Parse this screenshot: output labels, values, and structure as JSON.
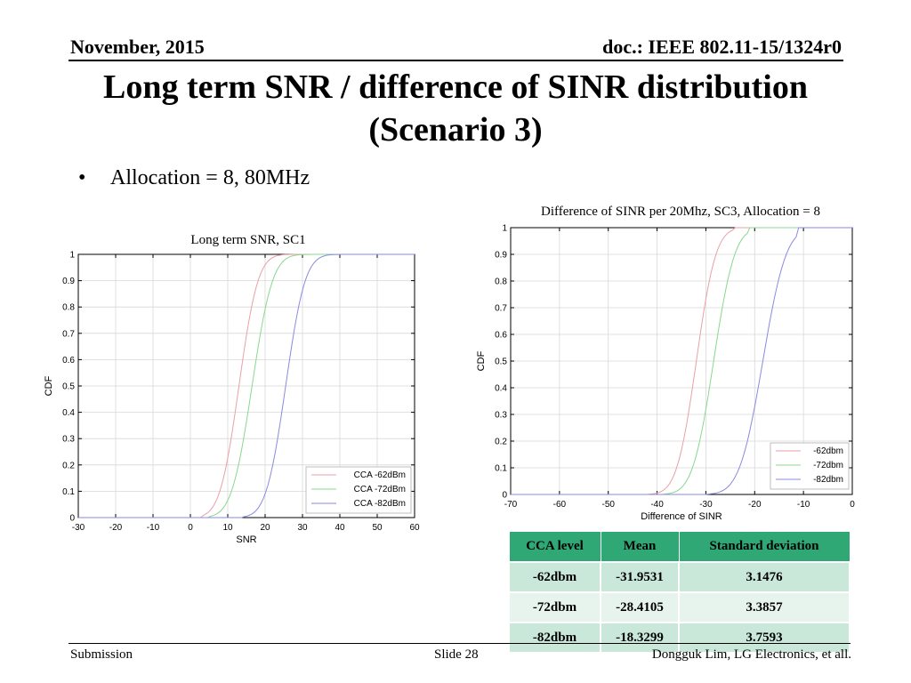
{
  "header": {
    "date": "November, 2015",
    "doc": "doc.: IEEE 802.11-15/1324r0"
  },
  "title_line1": "Long term SNR / difference of SINR distribution",
  "title_line2": "(Scenario 3)",
  "bullet": {
    "dot": "•",
    "text": "Allocation = 8, 80MHz"
  },
  "chart_data": [
    {
      "type": "line",
      "title": "Long term SNR, SC1",
      "xlabel": "SNR",
      "ylabel": "CDF",
      "xlim": [
        -30,
        60
      ],
      "ylim": [
        0,
        1
      ],
      "xticks": [
        -30,
        -20,
        -10,
        0,
        10,
        20,
        30,
        40,
        50,
        60
      ],
      "yticks": [
        0,
        0.1,
        0.2,
        0.3,
        0.4,
        0.5,
        0.6,
        0.7,
        0.8,
        0.9,
        1
      ],
      "grid": true,
      "legend_position": "bottom-right",
      "series": [
        {
          "name": "CCA -62dBm",
          "color": "#e8a0a8",
          "mean": 13,
          "std": 4,
          "x_range": [
            3,
            29
          ]
        },
        {
          "name": "CCA -72dBm",
          "color": "#88d88c",
          "mean": 16.5,
          "std": 4.3,
          "x_range": [
            5,
            33
          ]
        },
        {
          "name": "CCA -82dBm",
          "color": "#8a8ae0",
          "mean": 25.5,
          "std": 4.1,
          "x_range": [
            14,
            43
          ]
        }
      ]
    },
    {
      "type": "line",
      "title": "Difference of SINR per 20Mhz, SC3, Allocation = 8",
      "xlabel": "Difference of SINR",
      "ylabel": "CDF",
      "xlim": [
        -70,
        0
      ],
      "ylim": [
        0,
        1
      ],
      "xticks": [
        -70,
        -60,
        -50,
        -40,
        -30,
        -20,
        -10,
        0
      ],
      "yticks": [
        0,
        0.1,
        0.2,
        0.3,
        0.4,
        0.5,
        0.6,
        0.7,
        0.8,
        0.9,
        1
      ],
      "grid": true,
      "legend_position": "bottom-right",
      "series": [
        {
          "name": "-62dbm",
          "color": "#e8a0a8",
          "mean": -31.9531,
          "std": 3.1476,
          "x_range": [
            -42,
            -24
          ]
        },
        {
          "name": "-72dbm",
          "color": "#88d88c",
          "mean": -28.4105,
          "std": 3.3857,
          "x_range": [
            -39,
            -21
          ]
        },
        {
          "name": "-82dbm",
          "color": "#8a8ae0",
          "mean": -18.3299,
          "std": 3.7593,
          "x_range": [
            -30,
            -11
          ]
        }
      ]
    }
  ],
  "table": {
    "headers": [
      "CCA level",
      "Mean",
      "Standard deviation"
    ],
    "rows": [
      [
        "-62dbm",
        "-31.9531",
        "3.1476"
      ],
      [
        "-72dbm",
        "-28.4105",
        "3.3857"
      ],
      [
        "-82dbm",
        "-18.3299",
        "3.7593"
      ]
    ]
  },
  "footer": {
    "left": "Submission",
    "center": "Slide 28",
    "right": "Dongguk Lim, LG Electronics, et all."
  }
}
